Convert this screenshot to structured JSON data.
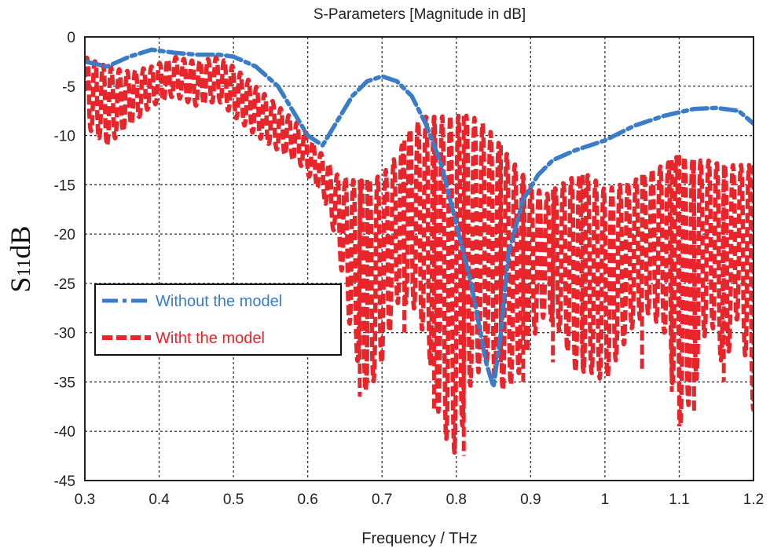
{
  "chart_data": {
    "type": "line",
    "title": "S-Parameters [Magnitude in dB]",
    "xlabel": "Frequency / THz",
    "ylabel_main": "S",
    "ylabel_sub": "11",
    "ylabel_suffix": "dB",
    "xlim": [
      0.3,
      1.2
    ],
    "ylim": [
      -45,
      0
    ],
    "x_ticks": [
      0.3,
      0.4,
      0.5,
      0.6,
      0.7,
      0.8,
      0.9,
      1.0,
      1.1,
      1.2
    ],
    "x_tick_labels": [
      "0.3",
      "0.4",
      "0.5",
      "0.6",
      "0.7",
      "0.8",
      "0.9",
      "1",
      "1.1",
      "1.2"
    ],
    "y_ticks": [
      0,
      -5,
      -10,
      -15,
      -20,
      -25,
      -30,
      -35,
      -40,
      -45
    ],
    "y_tick_labels": [
      "0",
      "-5",
      "-10",
      "-15",
      "-20",
      "-25",
      "-30",
      "-35",
      "-40",
      "-45"
    ],
    "grid": true,
    "legend_position": "left-middle",
    "series": [
      {
        "name": "Without  the model",
        "color": "#3a7cc8",
        "style": "dash-dot",
        "x": [
          0.3,
          0.33,
          0.36,
          0.39,
          0.42,
          0.45,
          0.48,
          0.5,
          0.53,
          0.56,
          0.58,
          0.6,
          0.62,
          0.64,
          0.66,
          0.68,
          0.7,
          0.72,
          0.74,
          0.76,
          0.78,
          0.8,
          0.82,
          0.84,
          0.85,
          0.86,
          0.87,
          0.89,
          0.91,
          0.93,
          0.96,
          1.0,
          1.04,
          1.08,
          1.12,
          1.15,
          1.18,
          1.2
        ],
        "y": [
          -2.5,
          -3.0,
          -2.0,
          -1.3,
          -1.6,
          -1.8,
          -1.8,
          -2.0,
          -3.0,
          -5.0,
          -7.5,
          -10.0,
          -11.0,
          -8.5,
          -6.0,
          -4.5,
          -4.0,
          -4.5,
          -6.0,
          -9.0,
          -13.0,
          -19.0,
          -25.0,
          -33.0,
          -35.5,
          -30.0,
          -22.0,
          -16.5,
          -14.0,
          -12.5,
          -11.5,
          -10.5,
          -9.0,
          -8.0,
          -7.3,
          -7.2,
          -7.5,
          -8.8
        ]
      },
      {
        "name": "Witht  the model",
        "color": "#e8252a",
        "style": "dashed",
        "envelope_x": [
          0.3,
          0.33,
          0.36,
          0.39,
          0.42,
          0.45,
          0.48,
          0.5,
          0.53,
          0.56,
          0.59,
          0.62,
          0.64,
          0.66,
          0.68,
          0.7,
          0.72,
          0.74,
          0.76,
          0.78,
          0.8,
          0.82,
          0.84,
          0.86,
          0.88,
          0.9,
          0.92,
          0.94,
          0.96,
          0.98,
          1.0,
          1.02,
          1.04,
          1.06,
          1.08,
          1.1,
          1.12,
          1.14,
          1.16,
          1.18,
          1.2
        ],
        "envelope_top": [
          -2.0,
          -3.0,
          -3.5,
          -3.0,
          -2.0,
          -2.5,
          -2.0,
          -3.0,
          -5.0,
          -7.0,
          -9.0,
          -12.0,
          -14.0,
          -14.5,
          -14.5,
          -14.0,
          -12.0,
          -9.0,
          -8.0,
          -8.0,
          -8.0,
          -8.0,
          -9.0,
          -11.0,
          -13.0,
          -15.0,
          -16.0,
          -15.0,
          -14.0,
          -14.0,
          -15.5,
          -15.0,
          -14.5,
          -13.5,
          -13.0,
          -12.0,
          -12.5,
          -12.5,
          -13.0,
          -13.0,
          -13.0
        ],
        "envelope_bottom": [
          -9.0,
          -11.0,
          -9.0,
          -7.0,
          -6.0,
          -7.0,
          -6.5,
          -8.0,
          -10.0,
          -11.5,
          -13.0,
          -16.0,
          -21.0,
          -31.0,
          -36.5,
          -33.0,
          -27.0,
          -27.0,
          -31.0,
          -40.0,
          -42.5,
          -35.0,
          -33.0,
          -36.0,
          -35.0,
          -31.0,
          -28.0,
          -30.0,
          -34.0,
          -34.0,
          -35.0,
          -32.0,
          -29.0,
          -28.0,
          -30.0,
          -39.5,
          -36.0,
          -28.0,
          -34.0,
          -28.0,
          -38.0
        ],
        "deep_nulls_x": [
          0.67,
          0.68,
          0.73,
          0.77,
          0.81,
          0.86,
          0.89,
          0.93,
          0.97,
          1.05,
          1.09,
          1.1,
          1.12,
          1.16,
          1.2
        ],
        "deep_nulls_y": [
          -36.5,
          -35.0,
          -30.0,
          -38.0,
          -42.5,
          -33.0,
          -35.0,
          -33.0,
          -34.0,
          -34.0,
          -36.0,
          -39.5,
          -38.0,
          -35.0,
          -38.0
        ]
      }
    ]
  }
}
